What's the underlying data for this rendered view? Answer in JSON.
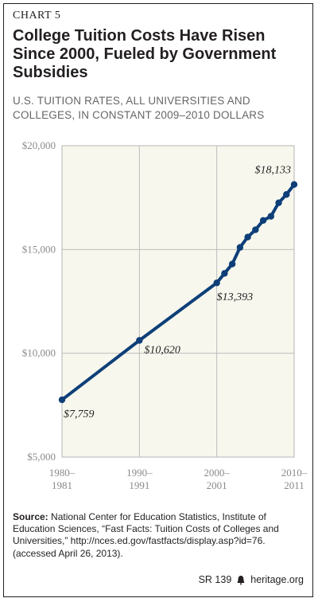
{
  "header": {
    "kicker": "CHART 5",
    "title": "College Tuition Costs Have Risen Since 2000, Fueled by Government Subsidies",
    "subtitle": "U.S. TUITION RATES, ALL UNIVERSITIES AND COLLEGES, IN CONSTANT 2009–2010 DOLLARS"
  },
  "chart_data": {
    "type": "line",
    "title": "College Tuition Costs Have Risen Since 2000, Fueled by Government Subsidies",
    "subtitle": "U.S. TUITION RATES, ALL UNIVERSITIES AND COLLEGES, IN CONSTANT 2009–2010 DOLLARS",
    "xlabel": "",
    "ylabel": "",
    "ylim": [
      5000,
      20000
    ],
    "xlim": [
      1980,
      2010
    ],
    "yticks": [
      {
        "value": 5000,
        "label": "$5,000"
      },
      {
        "value": 10000,
        "label": "$10,000"
      },
      {
        "value": 15000,
        "label": "$15,000"
      },
      {
        "value": 20000,
        "label": "$20,000"
      }
    ],
    "xticks": [
      {
        "value": 1980,
        "line1": "1980–",
        "line2": "1981"
      },
      {
        "value": 1990,
        "line1": "1990–",
        "line2": "1991"
      },
      {
        "value": 2000,
        "line1": "2000–",
        "line2": "2001"
      },
      {
        "value": 2010,
        "line1": "2010–",
        "line2": "2011"
      }
    ],
    "grid": true,
    "line_color": "#0e3f78",
    "plot_background": "#f7f7ee",
    "series": [
      {
        "x": [
          1980,
          1990,
          2000,
          2001,
          2002,
          2003,
          2004,
          2005,
          2006,
          2007,
          2008,
          2009,
          2010
        ],
        "y": [
          7759,
          10620,
          13393,
          13850,
          14300,
          15100,
          15600,
          15950,
          16400,
          16600,
          17250,
          17650,
          18133
        ]
      }
    ],
    "data_labels": [
      {
        "x": 1980,
        "y": 7759,
        "text": "$7,759"
      },
      {
        "x": 1990,
        "y": 10620,
        "text": "$10,620"
      },
      {
        "x": 2000,
        "y": 13393,
        "text": "$13,393"
      },
      {
        "x": 2010,
        "y": 18133,
        "text": "$18,133"
      }
    ]
  },
  "source": {
    "label": "Source:",
    "text": "National Center for Education Statistics, Institute of Education Sciences, “Fast Facts: Tuition Costs of Colleges and Universities,” http://nces.ed.gov/fastfacts/display.asp?id=76. (accessed April 26, 2013)."
  },
  "footer": {
    "report": "SR 139",
    "site": "heritage.org"
  }
}
